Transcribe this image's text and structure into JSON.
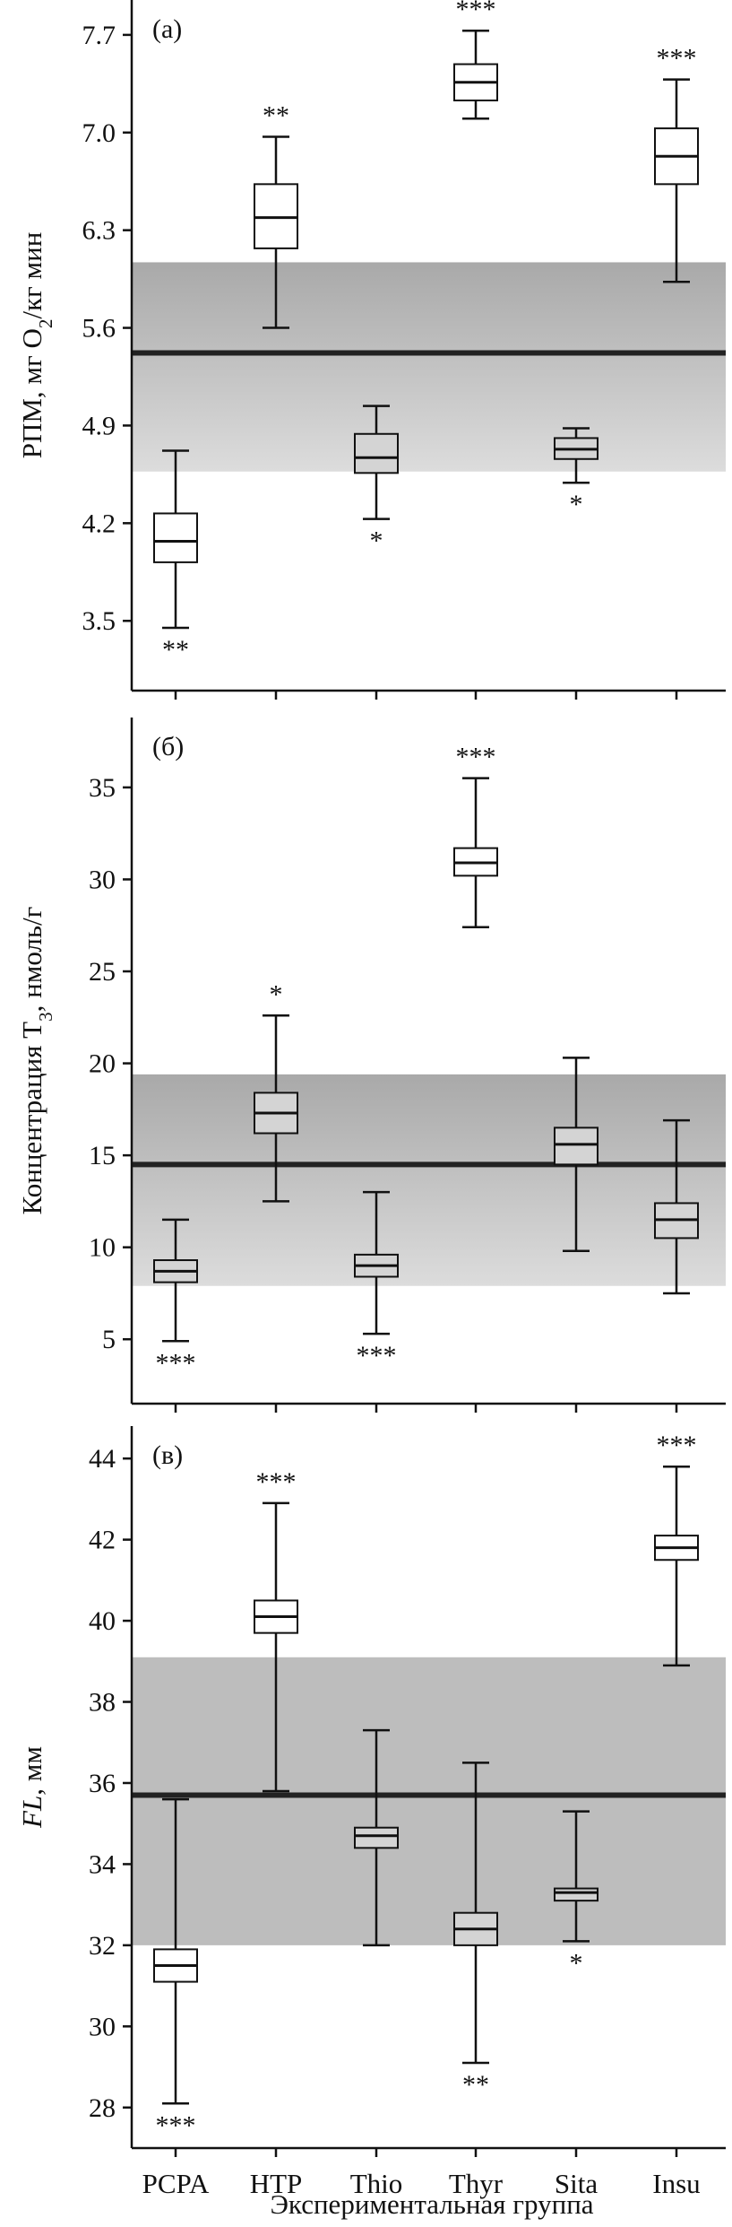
{
  "chart_data": [
    {
      "type": "box",
      "panel_label": "(а)",
      "ylabel_main": "РПМ, мг O",
      "ylabel_sub": "2",
      "ylabel_rest": "/кг мин",
      "yticks": [
        "3.5",
        "4.2",
        "4.9",
        "5.6",
        "6.3",
        "7.0",
        "7.7"
      ],
      "ylim": [
        3.0,
        7.95
      ],
      "categories": [
        "PCPA",
        "HTP",
        "Thio",
        "Thyr",
        "Sita",
        "Insu"
      ],
      "boxes": [
        {
          "min": 3.45,
          "q1": 3.92,
          "median": 4.07,
          "q3": 4.27,
          "max": 4.72,
          "fill": "#ffffff",
          "sig": "**",
          "sig_pos": "below"
        },
        {
          "min": 5.6,
          "q1": 6.17,
          "median": 6.39,
          "q3": 6.63,
          "max": 6.97,
          "fill": "#ffffff",
          "sig": "**",
          "sig_pos": "above"
        },
        {
          "min": 4.23,
          "q1": 4.56,
          "median": 4.67,
          "q3": 4.84,
          "max": 5.04,
          "fill": "#d4d4d4",
          "sig": "*",
          "sig_pos": "below"
        },
        {
          "min": 7.1,
          "q1": 7.23,
          "median": 7.36,
          "q3": 7.49,
          "max": 7.73,
          "fill": "#ffffff",
          "sig": "***",
          "sig_pos": "above"
        },
        {
          "min": 4.49,
          "q1": 4.66,
          "median": 4.73,
          "q3": 4.81,
          "max": 4.88,
          "fill": "#d4d4d4",
          "sig": "*",
          "sig_pos": "below"
        },
        {
          "min": 5.93,
          "q1": 6.63,
          "median": 6.83,
          "q3": 7.03,
          "max": 7.38,
          "fill": "#ffffff",
          "sig": "***",
          "sig_pos": "above"
        }
      ],
      "reference": {
        "line": 5.42,
        "band": [
          4.57,
          6.07
        ]
      }
    },
    {
      "type": "box",
      "panel_label": "(б)",
      "ylabel_main": "Концентрация T",
      "ylabel_sub": "3",
      "ylabel_rest": ", нмоль/г",
      "yticks": [
        "5",
        "10",
        "15",
        "20",
        "25",
        "30",
        "35"
      ],
      "ylim": [
        1.5,
        38.8
      ],
      "categories": [
        "PCPA",
        "HTP",
        "Thio",
        "Thyr",
        "Sita",
        "Insu"
      ],
      "boxes": [
        {
          "min": 4.9,
          "q1": 8.1,
          "median": 8.7,
          "q3": 9.3,
          "max": 11.5,
          "fill": "#d4d4d4",
          "sig": "***",
          "sig_pos": "below"
        },
        {
          "min": 12.5,
          "q1": 16.2,
          "median": 17.3,
          "q3": 18.4,
          "max": 22.6,
          "fill": "#d4d4d4",
          "sig": "*",
          "sig_pos": "above"
        },
        {
          "min": 5.3,
          "q1": 8.4,
          "median": 9.0,
          "q3": 9.6,
          "max": 13.0,
          "fill": "#d4d4d4",
          "sig": "***",
          "sig_pos": "below"
        },
        {
          "min": 27.4,
          "q1": 30.2,
          "median": 30.9,
          "q3": 31.7,
          "max": 35.5,
          "fill": "#ffffff",
          "sig": "***",
          "sig_pos": "above"
        },
        {
          "min": 9.8,
          "q1": 14.5,
          "median": 15.6,
          "q3": 16.5,
          "max": 20.3,
          "fill": "#d4d4d4",
          "sig": "",
          "sig_pos": "above"
        },
        {
          "min": 7.5,
          "q1": 10.5,
          "median": 11.5,
          "q3": 12.4,
          "max": 16.9,
          "fill": "#d4d4d4",
          "sig": "",
          "sig_pos": "above"
        }
      ],
      "reference": {
        "line": 14.5,
        "band": [
          7.9,
          19.4
        ]
      }
    },
    {
      "type": "box",
      "panel_label": "(в)",
      "ylabel_main": "FL",
      "ylabel_sub": "",
      "ylabel_rest": ", мм",
      "yticks": [
        "28",
        "30",
        "32",
        "34",
        "36",
        "38",
        "40",
        "42",
        "44"
      ],
      "ylim": [
        27.0,
        44.8
      ],
      "categories": [
        "PCPA",
        "HTP",
        "Thio",
        "Thyr",
        "Sita",
        "Insu"
      ],
      "boxes": [
        {
          "min": 28.1,
          "q1": 31.1,
          "median": 31.5,
          "q3": 31.9,
          "max": 35.6,
          "fill": "#ffffff",
          "sig": "***",
          "sig_pos": "below"
        },
        {
          "min": 35.8,
          "q1": 39.7,
          "median": 40.1,
          "q3": 40.5,
          "max": 42.9,
          "fill": "#ffffff",
          "sig": "***",
          "sig_pos": "above"
        },
        {
          "min": 32.0,
          "q1": 34.4,
          "median": 34.7,
          "q3": 34.9,
          "max": 37.3,
          "fill": "#d4d4d4",
          "sig": "",
          "sig_pos": "above"
        },
        {
          "min": 29.1,
          "q1": 32.0,
          "median": 32.4,
          "q3": 32.8,
          "max": 36.5,
          "fill": "#d4d4d4",
          "sig": "**",
          "sig_pos": "below"
        },
        {
          "min": 32.1,
          "q1": 33.1,
          "median": 33.3,
          "q3": 33.4,
          "max": 35.3,
          "fill": "#d4d4d4",
          "sig": "*",
          "sig_pos": "below"
        },
        {
          "min": 38.9,
          "q1": 41.5,
          "median": 41.8,
          "q3": 42.1,
          "max": 43.8,
          "fill": "#ffffff",
          "sig": "***",
          "sig_pos": "above"
        }
      ],
      "reference": {
        "line": 35.7,
        "band": [
          32.0,
          39.1
        ]
      }
    }
  ],
  "xlabel": "Экспериментальная группа",
  "colors": {
    "band_top": "#a9a9a9",
    "band_bottom": "#dcdcdc",
    "band_flat": "#bdbdbd",
    "reference_line": "#222222",
    "box_stroke": "#111111",
    "gray_box": "#d4d4d4",
    "white_box": "#ffffff"
  }
}
